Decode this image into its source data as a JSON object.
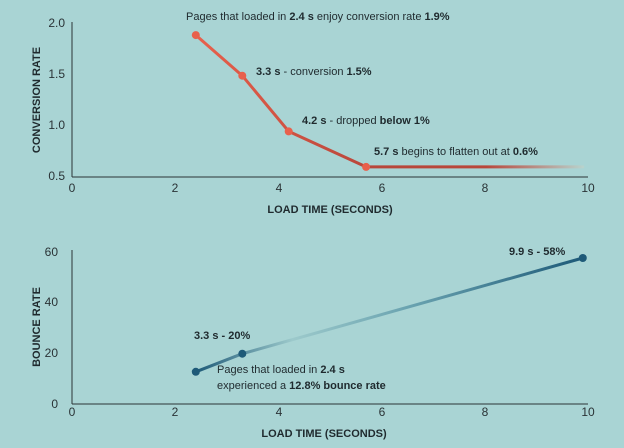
{
  "colors": {
    "background": "#a9d4d4",
    "conversion_series": "#e8604c",
    "conversion_line_dark": "#9a3a30",
    "bounce_series": "#1e5a78",
    "bounce_line_light": "#8fc3c8"
  },
  "chart_data": [
    {
      "type": "line",
      "xlabel": "LOAD TIME (SECONDS)",
      "ylabel": "CONVERSION RATE",
      "xlim": [
        0,
        10
      ],
      "ylim": [
        0.5,
        2.0
      ],
      "xticks": [
        "0",
        "2",
        "4",
        "6",
        "8",
        "10"
      ],
      "yticks": [
        "0.5",
        "1.0",
        "1.5",
        "2.0"
      ],
      "x": [
        2.4,
        3.3,
        4.2,
        5.7
      ],
      "series": [
        {
          "values": [
            1.9,
            1.5,
            0.95,
            0.6
          ],
          "flat_extension_to_x": 9.9
        }
      ],
      "annotations": [
        {
          "parts": [
            {
              "text": "Pages that loaded in ",
              "bold": false
            },
            {
              "text": "2.4 s",
              "bold": true
            },
            {
              "text": " enjoy conversion rate ",
              "bold": false
            },
            {
              "text": "1.9%",
              "bold": true
            }
          ]
        },
        {
          "parts": [
            {
              "text": "3.3 s",
              "bold": true
            },
            {
              "text": " - conversion ",
              "bold": false
            },
            {
              "text": "1.5%",
              "bold": true
            }
          ]
        },
        {
          "parts": [
            {
              "text": "4.2 s",
              "bold": true
            },
            {
              "text": " - dropped ",
              "bold": false
            },
            {
              "text": "below 1%",
              "bold": true
            }
          ]
        },
        {
          "parts": [
            {
              "text": "5.7 s",
              "bold": true
            },
            {
              "text": " begins to flatten out at ",
              "bold": false
            },
            {
              "text": "0.6%",
              "bold": true
            }
          ]
        }
      ]
    },
    {
      "type": "line",
      "xlabel": "LOAD TIME (SECONDS)",
      "ylabel": "BOUNCE RATE",
      "xlim": [
        0,
        10
      ],
      "ylim": [
        0,
        60
      ],
      "xticks": [
        "0",
        "2",
        "4",
        "6",
        "8",
        "10"
      ],
      "yticks": [
        "0",
        "20",
        "40",
        "60"
      ],
      "x": [
        2.4,
        3.3,
        9.9
      ],
      "series": [
        {
          "values": [
            12.8,
            20,
            58
          ]
        }
      ],
      "annotations": [
        {
          "parts": [
            {
              "text": "3.3 s - 20%",
              "bold": true
            }
          ]
        },
        {
          "parts": [
            {
              "text": "Pages that loaded in ",
              "bold": false
            },
            {
              "text": "2.4 s",
              "bold": true
            }
          ]
        },
        {
          "parts": [
            {
              "text": "experienced a ",
              "bold": false
            },
            {
              "text": "12.8% bounce rate",
              "bold": true
            }
          ]
        },
        {
          "parts": [
            {
              "text": "9.9 s - 58%",
              "bold": true
            }
          ]
        }
      ]
    }
  ]
}
